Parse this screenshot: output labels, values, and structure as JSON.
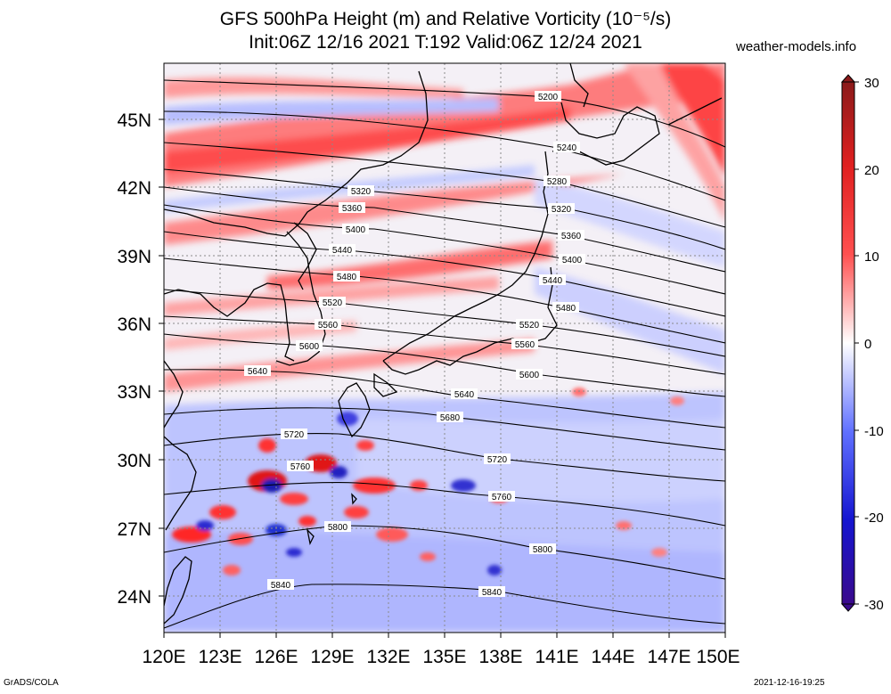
{
  "title": {
    "line1": "GFS 500hPa Height (m) and Relative Vorticity (10⁻⁵/s)",
    "line2": "Init:06Z 12/16 2021 T:192 Valid:06Z 12/24 2021"
  },
  "site": "weather-models.info",
  "footer": {
    "left": "GrADS/COLA",
    "right": "2021-12-16-19:25"
  },
  "map": {
    "lon_range": [
      120,
      150
    ],
    "lat_range": [
      22.5,
      47.5
    ],
    "x_ticks": [
      "120E",
      "123E",
      "126E",
      "129E",
      "132E",
      "135E",
      "138E",
      "141E",
      "144E",
      "147E",
      "150E"
    ],
    "y_ticks": [
      "24N",
      "27N",
      "30N",
      "33N",
      "36N",
      "39N",
      "42N",
      "45N"
    ],
    "height_contours": [
      {
        "value": 5200,
        "label": "5200"
      },
      {
        "value": 5240,
        "label": "5240"
      },
      {
        "value": 5280,
        "label": "5280"
      },
      {
        "value": 5320,
        "label": "5320"
      },
      {
        "value": 5360,
        "label": "5360"
      },
      {
        "value": 5400,
        "label": "5400"
      },
      {
        "value": 5440,
        "label": "5440"
      },
      {
        "value": 5480,
        "label": "5480"
      },
      {
        "value": 5520,
        "label": "5520"
      },
      {
        "value": 5560,
        "label": "5560"
      },
      {
        "value": 5600,
        "label": "5600"
      },
      {
        "value": 5640,
        "label": "5640"
      },
      {
        "value": 5680,
        "label": "5680"
      },
      {
        "value": 5720,
        "label": "5720"
      },
      {
        "value": 5760,
        "label": "5760"
      },
      {
        "value": 5800,
        "label": "5800"
      },
      {
        "value": 5840,
        "label": "5840"
      }
    ]
  },
  "colorbar": {
    "labels": [
      "30",
      "20",
      "10",
      "0",
      "-10",
      "-20",
      "-30"
    ],
    "values": [
      30,
      20,
      10,
      0,
      -10,
      -20,
      -30
    ],
    "colors": {
      "max": "#8b1a1a",
      "pos": "#ff2020",
      "zero": "#ffffff",
      "neg": "#2020ff",
      "min": "#3a0a8c"
    }
  },
  "colors": {
    "red": "#ff3030",
    "blue": "#3040ff",
    "contour": "#000000",
    "coast": "#000000",
    "grid": "#8a8a8a"
  }
}
